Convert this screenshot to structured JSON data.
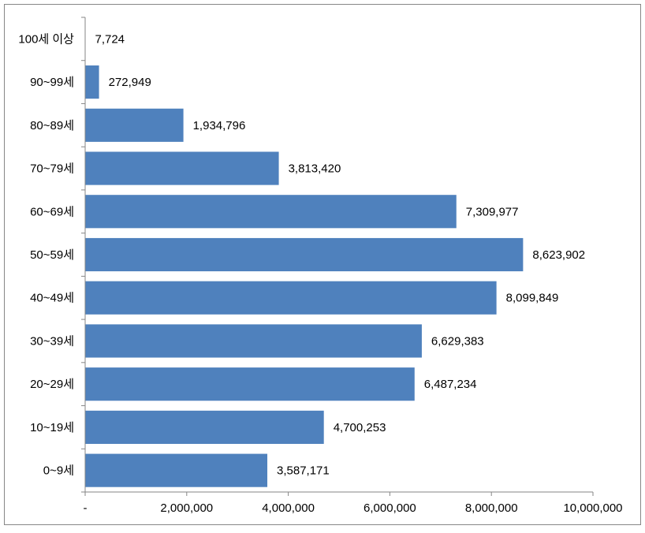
{
  "chart_data": {
    "type": "bar",
    "orientation": "horizontal",
    "categories": [
      "100세 이상",
      "90~99세",
      "80~89세",
      "70~79세",
      "60~69세",
      "50~59세",
      "40~49세",
      "30~39세",
      "20~29세",
      "10~19세",
      "0~9세"
    ],
    "values": [
      7724,
      272949,
      1934796,
      3813420,
      7309977,
      8623902,
      8099849,
      6629383,
      6487234,
      4700253,
      3587171
    ],
    "value_labels": [
      "7,724",
      "272,949",
      "1,934,796",
      "3,813,420",
      "7,309,977",
      "8,623,902",
      "8,099,849",
      "6,629,383",
      "6,487,234",
      "4,700,253",
      "3,587,171"
    ],
    "x_ticks": [
      0,
      2000000,
      4000000,
      6000000,
      8000000,
      10000000
    ],
    "x_tick_labels": [
      "-",
      "2,000,000",
      "4,000,000",
      "6,000,000",
      "8,000,000",
      "10,000,000"
    ],
    "xlim": [
      0,
      10000000
    ],
    "title": "",
    "xlabel": "",
    "ylabel": "",
    "grid": false,
    "legend": "none",
    "bar_color": "#4F81BD",
    "axis_color": "#868686",
    "frame_color": "#868686"
  }
}
